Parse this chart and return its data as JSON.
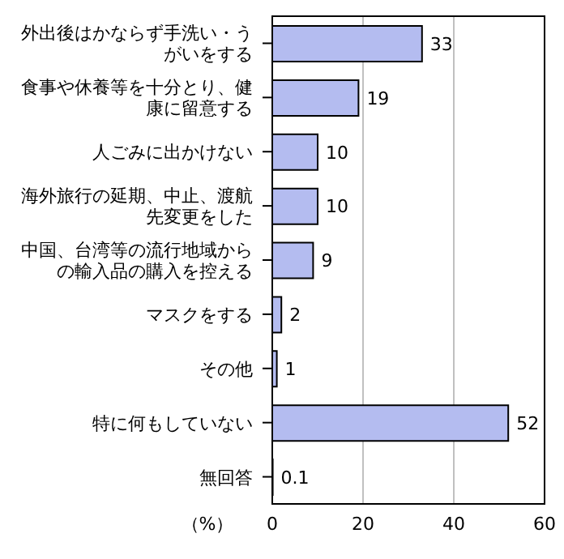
{
  "chart_data": {
    "type": "bar",
    "orientation": "horizontal",
    "xlabel": "（%）",
    "categories": [
      "外出後はかならず手洗い・うがいをする",
      "食事や休養等を十分とり、健康に留意する",
      "人ごみに出かけない",
      "海外旅行の延期、中止、渡航先変更をした",
      "中国、台湾等の流行地域からの輸入品の購入を控える",
      "マスクをする",
      "その他",
      "特に何もしていない",
      "無回答"
    ],
    "values": [
      33,
      19,
      10,
      10,
      9,
      2,
      1,
      52,
      0.1
    ],
    "color": "#b4bcf0",
    "data_labels": true,
    "xlim": [
      0,
      60
    ],
    "xticks": [
      0,
      20,
      40,
      60
    ],
    "grid": "x"
  }
}
